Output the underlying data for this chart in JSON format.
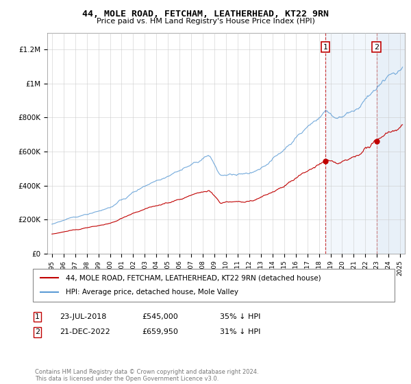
{
  "title": "44, MOLE ROAD, FETCHAM, LEATHERHEAD, KT22 9RN",
  "subtitle": "Price paid vs. HM Land Registry's House Price Index (HPI)",
  "legend_line1": "44, MOLE ROAD, FETCHAM, LEATHERHEAD, KT22 9RN (detached house)",
  "legend_line2": "HPI: Average price, detached house, Mole Valley",
  "footer": "Contains HM Land Registry data © Crown copyright and database right 2024.\nThis data is licensed under the Open Government Licence v3.0.",
  "sale1_date": "23-JUL-2018",
  "sale1_price": "£545,000",
  "sale1_note": "35% ↓ HPI",
  "sale2_date": "21-DEC-2022",
  "sale2_price": "£659,950",
  "sale2_note": "31% ↓ HPI",
  "sale1_x": 2018.55,
  "sale2_x": 2022.97,
  "sale1_y": 545000,
  "sale2_y": 659950,
  "hpi_color": "#5B9BD5",
  "price_color": "#C00000",
  "sale_marker_color": "#C00000",
  "grid_color": "#CCCCCC",
  "ylim": [
    0,
    1300000
  ],
  "xlim_start": 1994.6,
  "xlim_end": 2025.4,
  "yticks": [
    0,
    200000,
    400000,
    600000,
    800000,
    1000000,
    1200000
  ],
  "ytick_labels": [
    "£0",
    "£200K",
    "£400K",
    "£600K",
    "£800K",
    "£1M",
    "£1.2M"
  ],
  "xticks": [
    1995,
    1996,
    1997,
    1998,
    1999,
    2000,
    2001,
    2002,
    2003,
    2004,
    2005,
    2006,
    2007,
    2008,
    2009,
    2010,
    2011,
    2012,
    2013,
    2014,
    2015,
    2016,
    2017,
    2018,
    2019,
    2020,
    2021,
    2022,
    2023,
    2024,
    2025
  ]
}
